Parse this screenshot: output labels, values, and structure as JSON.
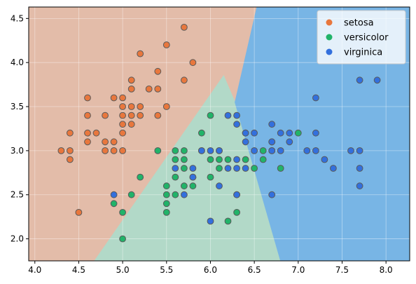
{
  "chart_data": {
    "type": "scatter",
    "title": "",
    "xlabel": "",
    "ylabel": "",
    "xlim": [
      3.93,
      8.27
    ],
    "ylim": [
      1.75,
      4.63
    ],
    "xticks": [
      "4.0",
      "4.5",
      "5.0",
      "5.5",
      "6.0",
      "6.5",
      "7.0",
      "7.5",
      "8.0"
    ],
    "yticks": [
      "2.0",
      "2.5",
      "3.0",
      "3.5",
      "4.0",
      "4.5"
    ],
    "grid": true,
    "legend": "top-right",
    "regions": [
      {
        "name": "setosa",
        "color": "#e3bca9",
        "points": [
          [
            3.93,
            1.75
          ],
          [
            4.68,
            1.75
          ],
          [
            6.15,
            3.85
          ],
          [
            6.28,
            3.55
          ],
          [
            6.53,
            4.63
          ],
          [
            3.93,
            4.63
          ]
        ]
      },
      {
        "name": "versicolor",
        "color": "#b2d9c8",
        "points": [
          [
            4.68,
            1.75
          ],
          [
            6.8,
            1.75
          ],
          [
            6.28,
            3.55
          ],
          [
            6.15,
            3.85
          ]
        ]
      },
      {
        "name": "virginica",
        "color": "#78b5e5",
        "points": [
          [
            6.8,
            1.75
          ],
          [
            8.27,
            1.75
          ],
          [
            8.27,
            4.63
          ],
          [
            6.53,
            4.63
          ],
          [
            6.28,
            3.55
          ]
        ]
      }
    ],
    "series": [
      {
        "name": "setosa",
        "color": "#e8773d",
        "points": [
          [
            4.3,
            3.0
          ],
          [
            4.4,
            3.2
          ],
          [
            4.4,
            3.0
          ],
          [
            4.4,
            2.9
          ],
          [
            4.5,
            2.3
          ],
          [
            4.6,
            3.6
          ],
          [
            4.6,
            3.4
          ],
          [
            4.6,
            3.2
          ],
          [
            4.6,
            3.1
          ],
          [
            4.7,
            3.2
          ],
          [
            4.8,
            3.4
          ],
          [
            4.8,
            3.1
          ],
          [
            4.8,
            3.0
          ],
          [
            4.9,
            3.6
          ],
          [
            4.9,
            3.1
          ],
          [
            4.9,
            3.0
          ],
          [
            5.0,
            3.6
          ],
          [
            5.0,
            3.5
          ],
          [
            5.0,
            3.4
          ],
          [
            5.0,
            3.3
          ],
          [
            5.0,
            3.2
          ],
          [
            5.0,
            3.0
          ],
          [
            5.1,
            3.8
          ],
          [
            5.1,
            3.7
          ],
          [
            5.1,
            3.5
          ],
          [
            5.1,
            3.4
          ],
          [
            5.1,
            3.3
          ],
          [
            5.2,
            4.1
          ],
          [
            5.2,
            3.5
          ],
          [
            5.2,
            3.4
          ],
          [
            5.3,
            3.7
          ],
          [
            5.4,
            3.9
          ],
          [
            5.4,
            3.7
          ],
          [
            5.4,
            3.4
          ],
          [
            5.5,
            4.2
          ],
          [
            5.5,
            3.5
          ],
          [
            5.7,
            4.4
          ],
          [
            5.7,
            3.8
          ],
          [
            5.8,
            4.0
          ]
        ]
      },
      {
        "name": "versicolor",
        "color": "#21b369",
        "points": [
          [
            4.9,
            2.4
          ],
          [
            5.0,
            2.3
          ],
          [
            5.0,
            2.0
          ],
          [
            5.1,
            2.5
          ],
          [
            5.2,
            2.7
          ],
          [
            5.4,
            3.0
          ],
          [
            5.5,
            2.6
          ],
          [
            5.5,
            2.5
          ],
          [
            5.5,
            2.4
          ],
          [
            5.5,
            2.3
          ],
          [
            5.6,
            3.0
          ],
          [
            5.6,
            2.9
          ],
          [
            5.6,
            2.7
          ],
          [
            5.6,
            2.5
          ],
          [
            5.7,
            3.0
          ],
          [
            5.7,
            2.9
          ],
          [
            5.7,
            2.8
          ],
          [
            5.7,
            2.6
          ],
          [
            5.8,
            2.7
          ],
          [
            5.8,
            2.6
          ],
          [
            5.9,
            3.2
          ],
          [
            5.9,
            3.0
          ],
          [
            6.0,
            3.4
          ],
          [
            6.0,
            2.9
          ],
          [
            6.0,
            2.7
          ],
          [
            6.1,
            3.0
          ],
          [
            6.1,
            2.9
          ],
          [
            6.1,
            2.8
          ],
          [
            6.2,
            2.9
          ],
          [
            6.2,
            2.2
          ],
          [
            6.3,
            2.5
          ],
          [
            6.3,
            2.3
          ],
          [
            6.4,
            2.9
          ],
          [
            6.4,
            3.2
          ],
          [
            6.5,
            2.8
          ],
          [
            6.6,
            3.0
          ],
          [
            6.6,
            2.9
          ],
          [
            6.7,
            3.1
          ],
          [
            6.7,
            3.0
          ],
          [
            6.8,
            2.8
          ],
          [
            7.0,
            3.2
          ]
        ]
      },
      {
        "name": "virginica",
        "color": "#3370dd",
        "points": [
          [
            4.9,
            2.5
          ],
          [
            5.6,
            2.8
          ],
          [
            5.7,
            2.5
          ],
          [
            5.8,
            2.8
          ],
          [
            5.8,
            2.7
          ],
          [
            5.9,
            3.0
          ],
          [
            6.0,
            3.0
          ],
          [
            6.0,
            2.2
          ],
          [
            6.1,
            3.0
          ],
          [
            6.1,
            2.6
          ],
          [
            6.2,
            3.4
          ],
          [
            6.2,
            2.8
          ],
          [
            6.3,
            3.4
          ],
          [
            6.3,
            3.3
          ],
          [
            6.3,
            2.9
          ],
          [
            6.3,
            2.8
          ],
          [
            6.3,
            2.5
          ],
          [
            6.4,
            3.2
          ],
          [
            6.4,
            3.1
          ],
          [
            6.4,
            2.8
          ],
          [
            6.5,
            3.2
          ],
          [
            6.5,
            3.0
          ],
          [
            6.7,
            3.3
          ],
          [
            6.7,
            3.1
          ],
          [
            6.7,
            3.0
          ],
          [
            6.7,
            2.5
          ],
          [
            6.8,
            3.2
          ],
          [
            6.8,
            3.0
          ],
          [
            6.9,
            3.2
          ],
          [
            6.9,
            3.1
          ],
          [
            7.1,
            3.0
          ],
          [
            7.2,
            3.6
          ],
          [
            7.2,
            3.2
          ],
          [
            7.2,
            3.0
          ],
          [
            7.3,
            2.9
          ],
          [
            7.4,
            2.8
          ],
          [
            7.6,
            3.0
          ],
          [
            7.7,
            3.8
          ],
          [
            7.7,
            3.0
          ],
          [
            7.7,
            2.8
          ],
          [
            7.7,
            2.6
          ],
          [
            7.9,
            3.8
          ]
        ]
      }
    ]
  }
}
